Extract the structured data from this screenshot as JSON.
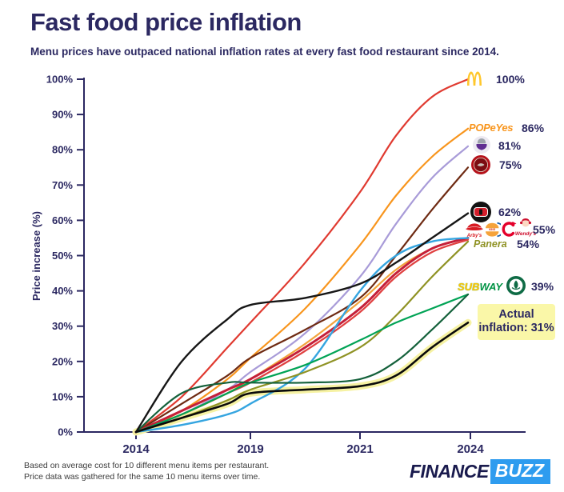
{
  "header": {
    "title": "Fast food price inflation",
    "subtitle": "Menu prices have outpaced national inflation rates at every fast food restaurant since 2014."
  },
  "colors": {
    "navy": "#2B2861",
    "highlight_box": "#FAF7A8",
    "buzz_blue": "#2E9CEF",
    "inflation_glow": "#F6F2A3"
  },
  "chart_data": {
    "type": "line",
    "title": "Fast food price inflation",
    "xlabel": "",
    "ylabel": "Price increase (%)",
    "ylim": [
      0,
      100
    ],
    "grid": false,
    "legend_position": "right-end-labels",
    "y_ticks": [
      "0%",
      "10%",
      "20%",
      "30%",
      "40%",
      "50%",
      "60%",
      "70%",
      "80%",
      "90%",
      "100%"
    ],
    "x_ticks": [
      {
        "label": "2014",
        "year": 2014,
        "px": 170
      },
      {
        "label": "2019",
        "year": 2019,
        "px": 313
      },
      {
        "label": "2021",
        "year": 2021,
        "px": 450
      },
      {
        "label": "2024",
        "year": 2024,
        "px": 588
      }
    ],
    "years": [
      2014,
      2016,
      2018,
      2019,
      2020,
      2021,
      2022,
      2023,
      2024
    ],
    "series": [
      {
        "id": "actual_inflation_glow",
        "name": "Actual inflation highlight",
        "color": "#F6F2A3",
        "width": 9,
        "values": [
          0,
          4,
          8,
          11,
          12,
          13,
          16,
          24,
          31
        ]
      },
      {
        "id": "mcdonalds",
        "name": "McDonald's",
        "color": "#E03A30",
        "width": 2.2,
        "end_label": "100%",
        "values": [
          0,
          10,
          24,
          31,
          48,
          68,
          84,
          95,
          100
        ]
      },
      {
        "id": "popeyes",
        "name": "Popeyes",
        "color": "#F8951D",
        "width": 2.2,
        "end_label": "86%",
        "values": [
          0,
          6,
          15,
          21,
          35,
          53,
          67,
          78,
          86
        ]
      },
      {
        "id": "taco_bell",
        "name": "Taco Bell",
        "color": "#A89BD8",
        "width": 2.2,
        "end_label": "81%",
        "values": [
          0,
          5,
          12,
          17,
          28,
          44,
          59,
          72,
          81
        ]
      },
      {
        "id": "chipotle",
        "name": "Chipotle",
        "color": "#6E2A12",
        "width": 2.2,
        "end_label": "75%",
        "values": [
          0,
          8,
          16,
          21,
          29,
          38,
          50,
          63,
          75
        ]
      },
      {
        "id": "burger_king",
        "name": "Burger King",
        "color": "#F2A33C",
        "width": 2.2,
        "end_label": "55%",
        "values": [
          0,
          5,
          11,
          15,
          25,
          37,
          46,
          52,
          55
        ]
      },
      {
        "id": "arbys",
        "name": "Arby's",
        "color": "#C41F39",
        "width": 3,
        "end_label": "55%",
        "values": [
          0,
          6,
          12,
          15,
          24,
          35,
          45,
          52,
          55
        ]
      },
      {
        "id": "chick_fil_a",
        "name": "Chick-fil-A",
        "color": "#E04040",
        "width": 2.2,
        "end_label": "55%",
        "values": [
          0,
          5,
          11,
          14,
          23,
          34,
          44,
          51,
          54.5
        ]
      },
      {
        "id": "wendys",
        "name": "Wendy's",
        "color": "#35A5E0",
        "width": 2.4,
        "end_label": "55%",
        "values": [
          0,
          2,
          5,
          8,
          18,
          40,
          50,
          54,
          55
        ]
      },
      {
        "id": "panera",
        "name": "Panera",
        "color": "#8F9224",
        "width": 2.2,
        "end_label": "54%",
        "values": [
          0,
          4,
          9,
          12,
          17,
          24,
          33,
          44,
          54
        ]
      },
      {
        "id": "subway",
        "name": "Subway",
        "color": "#00A355",
        "width": 2.2,
        "end_label": "39%",
        "values": [
          0,
          5,
          11,
          14,
          19,
          26,
          31,
          35,
          39
        ]
      },
      {
        "id": "starbucks",
        "name": "Starbucks",
        "color": "#14613B",
        "width": 2.2,
        "end_label": "39%",
        "values": [
          0,
          11,
          14,
          14,
          14,
          15,
          20,
          29,
          39
        ]
      },
      {
        "id": "actual_inflation",
        "name": "Actual inflation",
        "color": "#0A0A0A",
        "width": 2.6,
        "end_label": "31%",
        "values": [
          0,
          4,
          8,
          11,
          12,
          13,
          16,
          24,
          31
        ]
      }
    ]
  },
  "legend": {
    "mcdonalds_pct": "100%",
    "popeyes_pct": "86%",
    "popeyes_word": "POPeYes",
    "taco_bell_pct": "81%",
    "chipotle_pct": "75%",
    "jimmy_johns_pct": "62%",
    "group55_pct": "55%",
    "arbys_word": "Arby's",
    "bk_word": "KING",
    "wendys_word": "Wendy's",
    "panera_pct": "54%",
    "panera_word": "Panera",
    "group39_pct": "39%",
    "subway_word_sub": "SUB",
    "subway_word_way": "WAY",
    "inflation_line1": "Actual",
    "inflation_line2": "inflation: 31%"
  },
  "jimmy_johns_note": {
    "end_label": "62%",
    "values_years": [
      2014,
      2016,
      2018,
      2019,
      2020,
      2021,
      2022,
      2023,
      2024
    ],
    "values": [
      0,
      20,
      32,
      36,
      38,
      42,
      48,
      55,
      62
    ]
  },
  "footer": {
    "note_line1": "Based on average cost for 10 different menu items per restaurant.",
    "note_line2": "Price data was gathered for the same 10 menu items over time.",
    "brand_finance": "FINANCE",
    "brand_buzz": "BUZZ"
  }
}
